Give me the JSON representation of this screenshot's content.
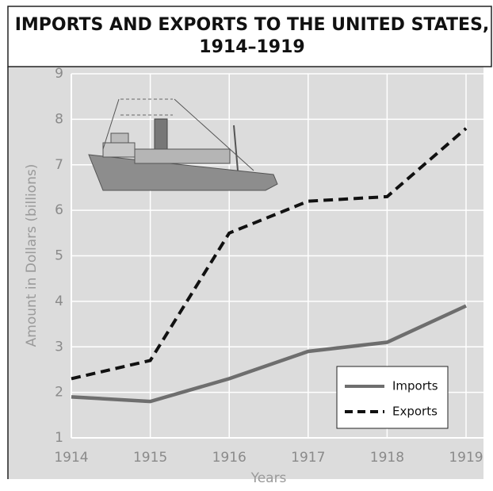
{
  "chart_data": {
    "type": "line",
    "title": "IMPORTS AND EXPORTS TO THE UNITED STATES,",
    "subtitle": "1914–1919",
    "x_label": "Years",
    "y_label": "Amount in Dollars (billions)",
    "x": [
      1914,
      1915,
      1916,
      1917,
      1918,
      1919
    ],
    "xlim": [
      1914,
      1919
    ],
    "xticks": [
      1914,
      1915,
      1916,
      1917,
      1918,
      1919
    ],
    "ylim": [
      1,
      9
    ],
    "yticks": [
      1,
      2,
      3,
      4,
      5,
      6,
      7,
      8,
      9
    ],
    "grid": true,
    "legend": "lower right",
    "series": [
      {
        "name": "Imports",
        "color": "#6e6e6e",
        "style": "solid",
        "values": [
          1.9,
          1.8,
          2.3,
          2.9,
          3.1,
          3.9
        ]
      },
      {
        "name": "Exports",
        "color": "#111111",
        "style": "dashed",
        "values": [
          2.3,
          2.7,
          5.5,
          6.2,
          6.3,
          7.8
        ]
      }
    ]
  }
}
